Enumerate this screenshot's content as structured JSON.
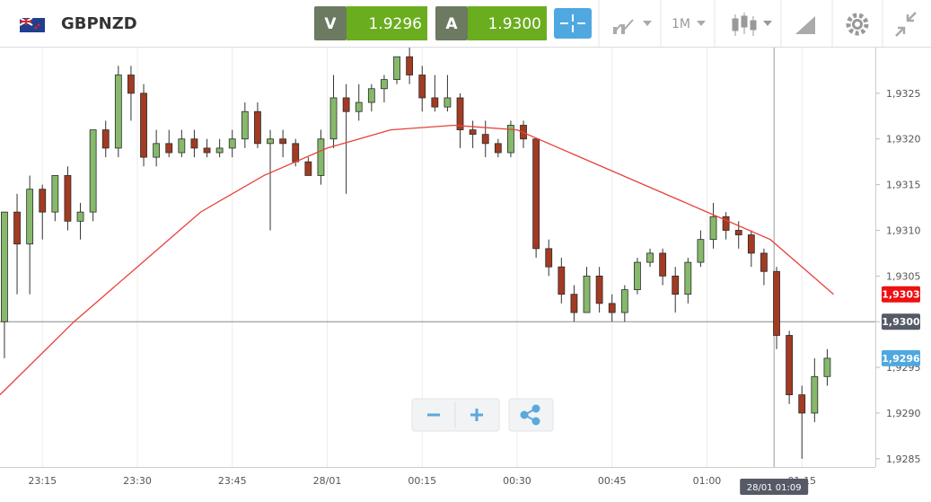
{
  "header": {
    "symbol": "GBPNZD",
    "bid_label": "V",
    "bid": "1.9296",
    "ask_label": "A",
    "ask": "1.9300",
    "timeframe": "1M"
  },
  "chart_data": {
    "type": "candlestick",
    "xlim": [
      8.3,
      146.6
    ],
    "ylim": [
      1.92841,
      1.933
    ],
    "xticks": [
      {
        "value": 15,
        "label": "23:15"
      },
      {
        "value": 30,
        "label": "23:30"
      },
      {
        "value": 45,
        "label": "23:45"
      },
      {
        "value": 60,
        "label": "28/01"
      },
      {
        "value": 75,
        "label": "00:15"
      },
      {
        "value": 90,
        "label": "00:30"
      },
      {
        "value": 105,
        "label": "00:45"
      },
      {
        "value": 120,
        "label": "01:00"
      },
      {
        "value": 135,
        "label": "01:15"
      }
    ],
    "yticks": [
      {
        "value": 1.9285,
        "label": "1,9285"
      },
      {
        "value": 1.929,
        "label": "1,9290"
      },
      {
        "value": 1.9295,
        "label": "1,9295"
      },
      {
        "value": 1.93,
        "label": "1,9300"
      },
      {
        "value": 1.9305,
        "label": "1,9305"
      },
      {
        "value": 1.931,
        "label": "1,9310"
      },
      {
        "value": 1.9315,
        "label": "1,9315"
      },
      {
        "value": 1.932,
        "label": "1,9320"
      },
      {
        "value": 1.9325,
        "label": "1,9325"
      }
    ],
    "up_color": "#86b96b",
    "down_color": "#a33a22",
    "x": [
      9,
      11,
      13,
      15,
      17,
      19,
      21,
      23,
      25,
      27,
      29,
      31,
      33,
      35,
      37,
      39,
      41,
      43,
      45,
      47,
      49,
      51,
      53,
      55,
      57,
      59,
      61,
      63,
      65,
      67,
      69,
      71,
      73,
      75,
      77,
      79,
      81,
      83,
      85,
      87,
      89,
      91,
      93,
      95,
      97,
      99,
      101,
      103,
      105,
      107,
      109,
      111,
      113,
      115,
      117,
      119,
      121,
      123,
      125,
      127,
      129,
      131,
      133,
      135,
      137,
      139
    ],
    "candles": [
      [
        1.93,
        1.9312,
        1.9296,
        1.9312
      ],
      [
        1.9312,
        1.9314,
        1.9303,
        1.93085
      ],
      [
        1.93085,
        1.9316,
        1.9303,
        1.93145
      ],
      [
        1.93145,
        1.9315,
        1.9309,
        1.9312
      ],
      [
        1.9312,
        1.9316,
        1.9311,
        1.9316
      ],
      [
        1.9316,
        1.9317,
        1.931,
        1.9311
      ],
      [
        1.9311,
        1.9313,
        1.9309,
        1.9312
      ],
      [
        1.9312,
        1.9321,
        1.9311,
        1.9321
      ],
      [
        1.9321,
        1.9322,
        1.9318,
        1.9319
      ],
      [
        1.9319,
        1.9328,
        1.9318,
        1.9327
      ],
      [
        1.9327,
        1.9328,
        1.9322,
        1.9325
      ],
      [
        1.9325,
        1.9326,
        1.9317,
        1.9318
      ],
      [
        1.9318,
        1.9321,
        1.9317,
        1.93195
      ],
      [
        1.93195,
        1.9321,
        1.9318,
        1.93185
      ],
      [
        1.93185,
        1.9321,
        1.9318,
        1.932
      ],
      [
        1.932,
        1.9321,
        1.9318,
        1.9319
      ],
      [
        1.9319,
        1.932,
        1.9318,
        1.93185
      ],
      [
        1.93185,
        1.932,
        1.9318,
        1.9319
      ],
      [
        1.9319,
        1.9321,
        1.9318,
        1.932
      ],
      [
        1.932,
        1.9324,
        1.9319,
        1.9323
      ],
      [
        1.9323,
        1.9324,
        1.9319,
        1.93195
      ],
      [
        1.93195,
        1.9321,
        1.931,
        1.932
      ],
      [
        1.932,
        1.9321,
        1.9318,
        1.93195
      ],
      [
        1.93195,
        1.932,
        1.9317,
        1.93175
      ],
      [
        1.93175,
        1.9318,
        1.9316,
        1.9316
      ],
      [
        1.9316,
        1.9321,
        1.9315,
        1.932
      ],
      [
        1.932,
        1.9327,
        1.9319,
        1.93245
      ],
      [
        1.93245,
        1.9326,
        1.9314,
        1.9323
      ],
      [
        1.9323,
        1.9326,
        1.9322,
        1.9324
      ],
      [
        1.9324,
        1.9326,
        1.9323,
        1.93255
      ],
      [
        1.93255,
        1.9327,
        1.9324,
        1.93265
      ],
      [
        1.93265,
        1.9329,
        1.9326,
        1.9329
      ],
      [
        1.9329,
        1.933,
        1.9326,
        1.9327
      ],
      [
        1.9327,
        1.9328,
        1.9323,
        1.93245
      ],
      [
        1.93245,
        1.9327,
        1.9323,
        1.93235
      ],
      [
        1.93235,
        1.9327,
        1.9323,
        1.93245
      ],
      [
        1.93245,
        1.9325,
        1.9319,
        1.9321
      ],
      [
        1.9321,
        1.9322,
        1.9319,
        1.93205
      ],
      [
        1.93205,
        1.9322,
        1.9318,
        1.93195
      ],
      [
        1.93195,
        1.932,
        1.9318,
        1.93185
      ],
      [
        1.93185,
        1.9322,
        1.9318,
        1.93215
      ],
      [
        1.93215,
        1.9322,
        1.9319,
        1.932
      ],
      [
        1.932,
        1.932,
        1.9307,
        1.9308
      ],
      [
        1.9308,
        1.9309,
        1.9305,
        1.9306
      ],
      [
        1.9306,
        1.9307,
        1.9302,
        1.9303
      ],
      [
        1.9303,
        1.9304,
        1.93,
        1.9301
      ],
      [
        1.9301,
        1.9306,
        1.9301,
        1.9305
      ],
      [
        1.9305,
        1.9306,
        1.9301,
        1.9302
      ],
      [
        1.9302,
        1.9303,
        1.93,
        1.9301
      ],
      [
        1.9301,
        1.9304,
        1.93,
        1.93035
      ],
      [
        1.93035,
        1.9307,
        1.9303,
        1.93065
      ],
      [
        1.93065,
        1.9308,
        1.9306,
        1.93075
      ],
      [
        1.93075,
        1.9308,
        1.9304,
        1.9305
      ],
      [
        1.9305,
        1.9306,
        1.9301,
        1.9303
      ],
      [
        1.9303,
        1.9307,
        1.9302,
        1.93065
      ],
      [
        1.93065,
        1.931,
        1.9306,
        1.9309
      ],
      [
        1.9309,
        1.9313,
        1.9308,
        1.93115
      ],
      [
        1.93115,
        1.9312,
        1.9309,
        1.931
      ],
      [
        1.931,
        1.9311,
        1.9308,
        1.93095
      ],
      [
        1.93095,
        1.931,
        1.9306,
        1.93075
      ],
      [
        1.93075,
        1.9308,
        1.9304,
        1.93055
      ],
      [
        1.93055,
        1.9306,
        1.9297,
        1.92985
      ],
      [
        1.92985,
        1.9299,
        1.9291,
        1.9292
      ],
      [
        1.9292,
        1.9293,
        1.9285,
        1.929
      ],
      [
        1.929,
        1.9296,
        1.9289,
        1.9294
      ],
      [
        1.9294,
        1.9297,
        1.9293,
        1.9296
      ]
    ],
    "ma": {
      "color": "#e8423a",
      "x": [
        8.3,
        20,
        30,
        40,
        50,
        60,
        70,
        80,
        90,
        100,
        110,
        120,
        130,
        140
      ],
      "values": [
        1.9292,
        1.93,
        1.9306,
        1.9312,
        1.9316,
        1.9319,
        1.9321,
        1.93215,
        1.9321,
        1.9318,
        1.9315,
        1.9312,
        1.9309,
        1.9303
      ]
    },
    "markers": [
      {
        "value": 1.9303,
        "label": "1,9303",
        "color": "#ee1111"
      },
      {
        "value": 1.93,
        "label": "1,9300",
        "color": "#555a66"
      },
      {
        "value": 1.9296,
        "label": "1,9296",
        "color": "#4fa8e0"
      }
    ],
    "crosshair": {
      "x": 130.6,
      "label": "28/01 01:09"
    }
  }
}
